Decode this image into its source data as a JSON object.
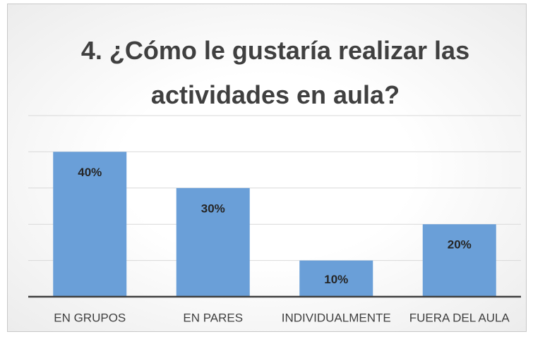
{
  "chart_data": {
    "type": "bar",
    "title": "4. ¿Cómo le gustaría realizar las actividades en aula?",
    "categories": [
      "EN GRUPOS",
      "EN PARES",
      "INDIVIDUALMENTE",
      "FUERA DEL AULA"
    ],
    "values": [
      40,
      30,
      10,
      20
    ],
    "value_labels": [
      "40%",
      "30%",
      "10%",
      "20%"
    ],
    "color": "#6a9fd8",
    "ylim": [
      0,
      50
    ],
    "yticks": [
      0,
      10,
      20,
      30,
      40,
      50
    ],
    "grid": true
  }
}
